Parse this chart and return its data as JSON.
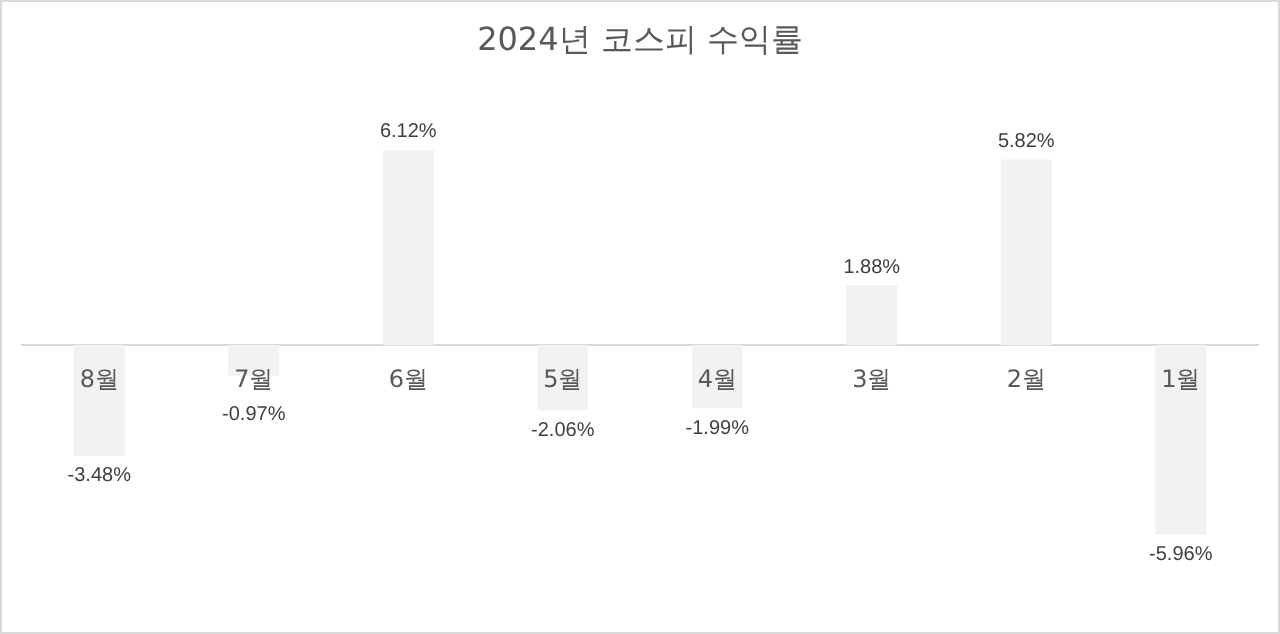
{
  "chart_data": {
    "type": "bar",
    "title": "2024년 코스피 수익률",
    "categories": [
      "8월",
      "7월",
      "6월",
      "5월",
      "4월",
      "3월",
      "2월",
      "1월"
    ],
    "values": [
      -3.48,
      -0.97,
      6.12,
      -2.06,
      -1.99,
      1.88,
      5.82,
      -5.96
    ],
    "value_labels": [
      "-3.48%",
      "-0.97%",
      "6.12%",
      "-2.06%",
      "-1.99%",
      "1.88%",
      "5.82%",
      "-5.96%"
    ],
    "color": "#f2f2f2",
    "grid": false,
    "legend": false
  }
}
